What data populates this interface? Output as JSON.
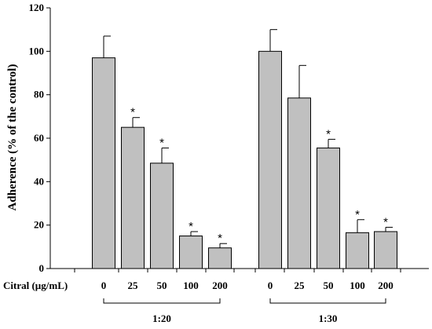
{
  "chart_data": {
    "type": "bar",
    "ylabel": "Adherence (% of the control)",
    "xlabel_prefix": "Citral (µg/mL)",
    "ylim": [
      0,
      120
    ],
    "yticks": [
      "0",
      "20",
      "40",
      "60",
      "80",
      "100",
      "120"
    ],
    "grid": false,
    "bar_color": "#c0c0c0",
    "groups": [
      {
        "name": "1:20",
        "categories": [
          "0",
          "25",
          "50",
          "100",
          "200"
        ],
        "values": [
          97,
          65,
          48.5,
          15,
          9.5
        ],
        "errors": [
          10,
          4.5,
          7,
          2,
          2
        ],
        "significance": [
          "",
          "*",
          "*",
          "*",
          "*"
        ]
      },
      {
        "name": "1:30",
        "categories": [
          "0",
          "25",
          "50",
          "100",
          "200"
        ],
        "values": [
          100,
          78.5,
          55.5,
          16.5,
          17
        ],
        "errors": [
          10,
          15,
          4,
          6,
          2
        ],
        "significance": [
          "",
          "",
          "*",
          "*",
          "*"
        ]
      }
    ]
  }
}
